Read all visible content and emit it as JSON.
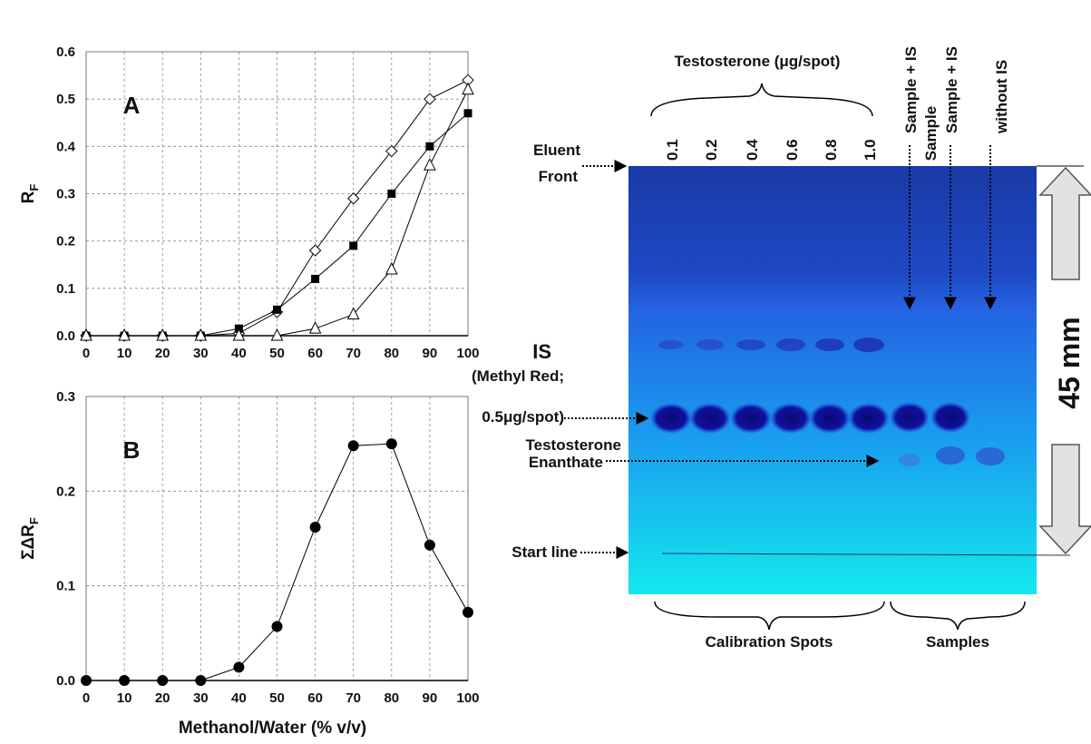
{
  "chart_data": [
    {
      "type": "line",
      "panel_label": "A",
      "y_label": "R",
      "y_label_sub": "F",
      "x": [
        0,
        10,
        20,
        30,
        40,
        50,
        60,
        70,
        80,
        90,
        100
      ],
      "series": [
        {
          "marker": "diamond-open",
          "color": "#000000",
          "values": [
            0,
            0,
            0,
            0,
            0.005,
            0.05,
            0.18,
            0.29,
            0.39,
            0.5,
            0.54
          ]
        },
        {
          "marker": "square-filled",
          "color": "#000000",
          "values": [
            0,
            0,
            0,
            0,
            0.015,
            0.055,
            0.12,
            0.19,
            0.3,
            0.4,
            0.47
          ]
        },
        {
          "marker": "triangle-open",
          "color": "#000000",
          "values": [
            0,
            0,
            0,
            0,
            0,
            0,
            0.015,
            0.045,
            0.14,
            0.36,
            0.52
          ]
        }
      ],
      "xlim": [
        0,
        100
      ],
      "xticks": [
        0,
        10,
        20,
        30,
        40,
        50,
        60,
        70,
        80,
        90,
        100
      ],
      "ylim": [
        0,
        0.6
      ],
      "yticks": [
        {
          "value": 0,
          "label": "0.0"
        },
        0.1,
        0.2,
        0.3,
        0.4,
        0.5,
        0.6
      ],
      "grid": true
    },
    {
      "type": "line",
      "panel_label": "B",
      "y_label": "ΣΔR",
      "y_label_sub": "F",
      "x_label": "Methanol/Water (% v/v)",
      "x": [
        0,
        10,
        20,
        30,
        40,
        50,
        60,
        70,
        80,
        90,
        100
      ],
      "series": [
        {
          "marker": "circle-filled",
          "color": "#000000",
          "values": [
            0,
            0,
            0,
            0,
            0.014,
            0.057,
            0.162,
            0.248,
            0.25,
            0.143,
            0.072
          ]
        }
      ],
      "xlim": [
        0,
        100
      ],
      "xticks": [
        0,
        10,
        20,
        30,
        40,
        50,
        60,
        70,
        80,
        90,
        100
      ],
      "ylim": [
        0,
        0.3
      ],
      "yticks": [
        {
          "value": 0,
          "label": "0.0"
        },
        0.1,
        0.2,
        0.3
      ],
      "grid": true
    }
  ],
  "plate": {
    "header": "Testosterone (μg/spot)",
    "lanes": [
      "0.1",
      "0.2",
      "0.4",
      "0.6",
      "0.8",
      "1.0"
    ],
    "sample_lanes": [
      "Sample + IS",
      "Sample + IS"
    ],
    "sample_no_is": [
      "Sample",
      "without IS"
    ],
    "eluent_front": [
      "Eluent",
      "Front"
    ],
    "is_title": "IS",
    "is_detail": [
      "(Methyl Red;",
      "0.5μg/spot)"
    ],
    "analyte": [
      "Testosterone",
      "Enanthate"
    ],
    "start_line": "Start line",
    "groups": [
      "Calibration Spots",
      "Samples"
    ],
    "distance": "45 mm"
  }
}
